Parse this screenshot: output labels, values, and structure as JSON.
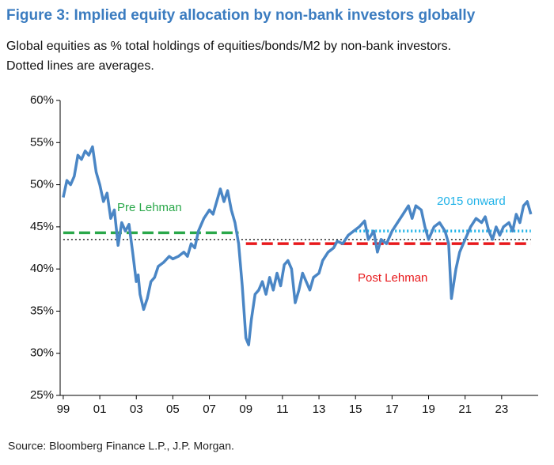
{
  "chart_data": {
    "type": "line",
    "title": "Figure 3: Implied equity allocation by non-bank investors globally",
    "subtitle_lines": [
      "Global equities as % total holdings of equities/bonds/M2 by non-bank investors.",
      "Dotted lines are averages."
    ],
    "source": "Source: Bloomberg Finance L.P., J.P. Morgan.",
    "xlim": [
      1998.83,
      2025.0
    ],
    "ylim": [
      25,
      60
    ],
    "xticks": [
      {
        "value": 1999,
        "label": "99"
      },
      {
        "value": 2001,
        "label": "01"
      },
      {
        "value": 2003,
        "label": "03"
      },
      {
        "value": 2005,
        "label": "05"
      },
      {
        "value": 2007,
        "label": "07"
      },
      {
        "value": 2009,
        "label": "09"
      },
      {
        "value": 2011,
        "label": "11"
      },
      {
        "value": 2013,
        "label": "13"
      },
      {
        "value": 2015,
        "label": "15"
      },
      {
        "value": 2017,
        "label": "17"
      },
      {
        "value": 2019,
        "label": "19"
      },
      {
        "value": 2021,
        "label": "21"
      },
      {
        "value": 2023,
        "label": "23"
      }
    ],
    "yticks": [
      {
        "value": 25,
        "label": "25%"
      },
      {
        "value": 30,
        "label": "30%"
      },
      {
        "value": 35,
        "label": "35%"
      },
      {
        "value": 40,
        "label": "40%"
      },
      {
        "value": 45,
        "label": "45%"
      },
      {
        "value": 50,
        "label": "50%"
      },
      {
        "value": 55,
        "label": "55%"
      },
      {
        "value": 60,
        "label": "60%"
      }
    ],
    "series": [
      {
        "color": "#4a86c5",
        "x": [
          1999.0,
          1999.2,
          1999.4,
          1999.6,
          1999.8,
          2000.0,
          2000.2,
          2000.4,
          2000.6,
          2000.8,
          2001.0,
          2001.2,
          2001.4,
          2001.6,
          2001.8,
          2002.0,
          2002.2,
          2002.4,
          2002.6,
          2002.8,
          2003.0,
          2003.1,
          2003.2,
          2003.4,
          2003.6,
          2003.8,
          2004.0,
          2004.2,
          2004.5,
          2004.8,
          2005.0,
          2005.3,
          2005.6,
          2005.8,
          2006.0,
          2006.2,
          2006.4,
          2006.7,
          2007.0,
          2007.2,
          2007.4,
          2007.6,
          2007.8,
          2008.0,
          2008.2,
          2008.4,
          2008.6,
          2008.8,
          2009.0,
          2009.15,
          2009.3,
          2009.5,
          2009.7,
          2009.9,
          2010.1,
          2010.3,
          2010.5,
          2010.7,
          2010.9,
          2011.1,
          2011.3,
          2011.5,
          2011.7,
          2011.9,
          2012.1,
          2012.3,
          2012.5,
          2012.7,
          2013.0,
          2013.2,
          2013.5,
          2013.8,
          2014.0,
          2014.3,
          2014.6,
          2014.9,
          2015.2,
          2015.5,
          2015.7,
          2016.0,
          2016.2,
          2016.4,
          2016.7,
          2017.0,
          2017.3,
          2017.6,
          2017.9,
          2018.1,
          2018.3,
          2018.6,
          2018.8,
          2019.0,
          2019.3,
          2019.6,
          2019.9,
          2020.1,
          2020.25,
          2020.5,
          2020.7,
          2021.0,
          2021.3,
          2021.6,
          2021.9,
          2022.1,
          2022.3,
          2022.5,
          2022.7,
          2022.9,
          2023.1,
          2023.4,
          2023.6,
          2023.8,
          2024.0,
          2024.2,
          2024.4,
          2024.6
        ],
        "values": [
          48.5,
          50.5,
          50,
          51,
          53.5,
          53,
          54,
          53.5,
          54.5,
          51.5,
          50,
          48,
          49,
          46,
          47,
          42.8,
          45.5,
          44.5,
          45.3,
          42,
          38.5,
          39.3,
          37,
          35.2,
          36.5,
          38.5,
          39,
          40.3,
          40.8,
          41.5,
          41.2,
          41.5,
          42,
          41.5,
          43,
          42.5,
          44.5,
          46,
          47,
          46.5,
          48,
          49.5,
          48,
          49.3,
          47,
          45.5,
          43,
          38,
          31.8,
          31,
          34,
          37,
          37.5,
          38.5,
          37,
          39,
          37.5,
          39.5,
          38,
          40.5,
          41,
          40,
          36,
          37.5,
          39.5,
          38.5,
          37.5,
          39,
          39.5,
          41,
          42,
          42.5,
          43.3,
          43,
          44,
          44.5,
          45,
          45.7,
          43.5,
          44.5,
          42,
          43.5,
          43,
          44.5,
          45.5,
          46.5,
          47.5,
          46,
          47.5,
          47,
          45,
          43.5,
          45,
          45.5,
          44.5,
          43,
          36.5,
          40,
          42,
          43.5,
          45,
          46,
          45.5,
          46.2,
          44.5,
          43.5,
          45,
          44,
          45,
          45.5,
          44.5,
          46.5,
          45.5,
          47.5,
          48,
          46.5
        ]
      }
    ],
    "averages": [
      {
        "label": "Pre Lehman",
        "value": 44.3,
        "start": 1999.0,
        "end": 2008.6,
        "color": "#2aa84a",
        "style": "dashed"
      },
      {
        "value": 43.5,
        "start": 1999.0,
        "end": 2024.6,
        "color": "#000000",
        "style": "dotted"
      },
      {
        "label": "Post Lehman",
        "value": 43.0,
        "start": 2009.0,
        "end": 2024.6,
        "color": "#e8191c",
        "style": "dashed"
      },
      {
        "label": "2015 onward",
        "value": 44.5,
        "start": 2015.0,
        "end": 2024.6,
        "color": "#1fb2e8",
        "style": "dotted"
      }
    ]
  }
}
